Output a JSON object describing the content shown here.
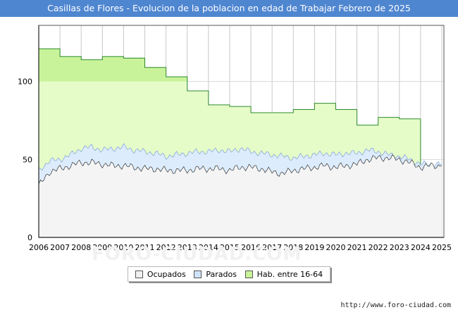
{
  "title": "Casillas de Flores - Evolucion de la poblacion en edad de Trabajar Febrero de 2025",
  "footer_url": "http://www.foro-ciudad.com",
  "watermark": "FORO-CIUDAD.COM",
  "legend": [
    {
      "label": "Ocupados",
      "color": "#f0f0f0"
    },
    {
      "label": "Parados",
      "color": "#cfe4fb"
    },
    {
      "label": "Hab. entre 16-64",
      "color": "#c9f39a"
    }
  ],
  "colors": {
    "hab_fill": "#e6fcc8",
    "hab_fill_strong": "#c9f39a",
    "hab_line": "#2c8a2c",
    "parados_fill": "#dcecfd",
    "parados_line": "#8aa9d6",
    "ocupados_fill": "#f4f4f4",
    "ocupados_line": "#333333",
    "title_bg": "#4f86d0"
  },
  "chart_data": {
    "type": "area",
    "title": "Casillas de Flores - Evolucion de la poblacion en edad de Trabajar Febrero de 2025",
    "xlabel": "",
    "ylabel": "",
    "xlim": [
      2006,
      2025.1
    ],
    "ylim": [
      0,
      136
    ],
    "x_ticks": [
      "2006",
      "2007",
      "2008",
      "2009",
      "2010",
      "2011",
      "2012",
      "2013",
      "2014",
      "2015",
      "2016",
      "2017",
      "2018",
      "2019",
      "2020",
      "2021",
      "2022",
      "2023",
      "2024",
      "2025"
    ],
    "y_ticks": [
      0,
      50,
      100
    ],
    "grid": true,
    "hab_highlight_above": 100,
    "hab_16_64": {
      "name": "Hab. entre 16-64",
      "years": [
        2006,
        2007,
        2008,
        2009,
        2010,
        2011,
        2012,
        2013,
        2014,
        2015,
        2016,
        2017,
        2018,
        2019,
        2020,
        2021,
        2022,
        2023,
        2024
      ],
      "values": [
        121,
        116,
        114,
        116,
        115,
        109,
        103,
        94,
        85,
        84,
        80,
        80,
        82,
        86,
        82,
        72,
        77,
        76,
        null
      ]
    },
    "activos": {
      "name": "Ocupados + Parados",
      "x": [
        2006,
        2006.5,
        2007,
        2007.5,
        2008,
        2008.5,
        2009,
        2009.5,
        2010,
        2010.5,
        2011,
        2011.5,
        2012,
        2012.5,
        2013,
        2013.5,
        2014,
        2014.5,
        2015,
        2015.5,
        2016,
        2016.5,
        2017,
        2017.5,
        2018,
        2018.5,
        2019,
        2019.5,
        2020,
        2020.5,
        2021,
        2021.5,
        2022,
        2022.5,
        2023,
        2023.5,
        2024,
        2024.5,
        2025
      ],
      "values": [
        43,
        49,
        50,
        53,
        57,
        58,
        56,
        57,
        58,
        56,
        55,
        54,
        52,
        53,
        54,
        55,
        55,
        56,
        55,
        57,
        55,
        54,
        53,
        52,
        51,
        52,
        53,
        54,
        53,
        54,
        54,
        56,
        55,
        53,
        52,
        50,
        47,
        47,
        47
      ]
    },
    "ocupados": {
      "name": "Ocupados",
      "x": [
        2006,
        2006.5,
        2007,
        2007.5,
        2008,
        2008.5,
        2009,
        2009.5,
        2010,
        2010.5,
        2011,
        2011.5,
        2012,
        2012.5,
        2013,
        2013.5,
        2014,
        2014.5,
        2015,
        2015.5,
        2016,
        2016.5,
        2017,
        2017.5,
        2018,
        2018.5,
        2019,
        2019.5,
        2020,
        2020.5,
        2021,
        2021.5,
        2022,
        2022.5,
        2023,
        2023.5,
        2024,
        2024.5,
        2025
      ],
      "values": [
        33,
        42,
        44,
        46,
        48,
        48,
        47,
        46,
        46,
        45,
        44,
        44,
        43,
        43,
        43,
        44,
        44,
        44,
        43,
        45,
        45,
        44,
        42,
        41,
        43,
        44,
        45,
        46,
        45,
        46,
        47,
        50,
        51,
        51,
        50,
        48,
        45,
        46,
        46
      ]
    }
  }
}
